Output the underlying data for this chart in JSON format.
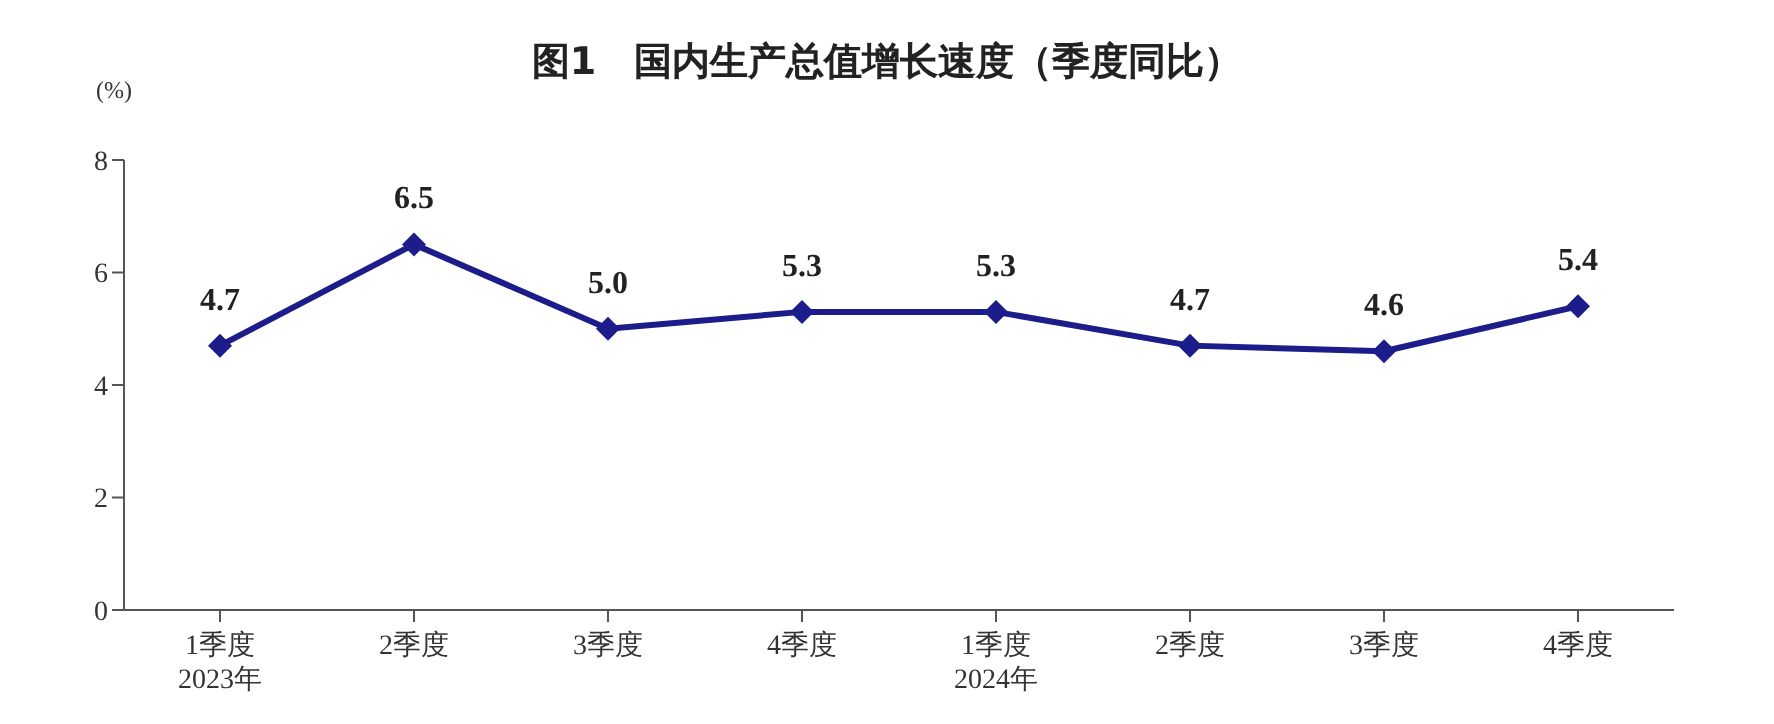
{
  "chart_data": {
    "type": "line",
    "title": "图1　国内生产总值增长速度（季度同比）",
    "ylabel": "(%)",
    "categories": [
      "1季度\n2023年",
      "2季度",
      "3季度",
      "4季度",
      "1季度\n2024年",
      "2季度",
      "3季度",
      "4季度"
    ],
    "series": [
      {
        "color": "#1c1c8a",
        "values": [
          4.7,
          6.5,
          5.0,
          5.3,
          5.3,
          4.7,
          4.6,
          5.4
        ],
        "value_labels": [
          "4.7",
          "6.5",
          "5.0",
          "5.3",
          "5.3",
          "4.7",
          "4.6",
          "5.4"
        ]
      }
    ],
    "ylim": [
      0,
      8
    ],
    "yticks": [
      0,
      2,
      4,
      6,
      8
    ],
    "grid": false,
    "marker": "diamond",
    "line_style": "solid"
  }
}
